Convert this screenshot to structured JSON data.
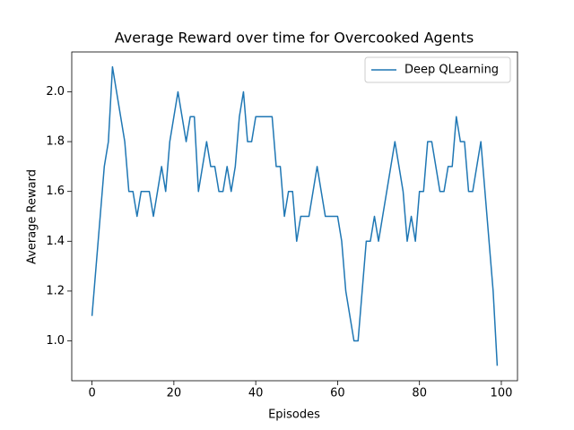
{
  "chart_data": {
    "type": "line",
    "title": "Average Reward over time for Overcooked Agents",
    "xlabel": "Episodes",
    "ylabel": "Average Reward",
    "x": [
      0,
      1,
      2,
      3,
      4,
      5,
      6,
      7,
      8,
      9,
      10,
      11,
      12,
      13,
      14,
      15,
      16,
      17,
      18,
      19,
      20,
      21,
      22,
      23,
      24,
      25,
      26,
      27,
      28,
      29,
      30,
      31,
      32,
      33,
      34,
      35,
      36,
      37,
      38,
      39,
      40,
      41,
      42,
      43,
      44,
      45,
      46,
      47,
      48,
      49,
      50,
      51,
      52,
      53,
      54,
      55,
      56,
      57,
      58,
      59,
      60,
      61,
      62,
      63,
      64,
      65,
      66,
      67,
      68,
      69,
      70,
      71,
      72,
      73,
      74,
      75,
      76,
      77,
      78,
      79,
      80,
      81,
      82,
      83,
      84,
      85,
      86,
      87,
      88,
      89,
      90,
      91,
      92,
      93,
      94,
      95,
      96,
      97,
      98,
      99
    ],
    "series": [
      {
        "name": "Deep QLearning",
        "color": "#1f77b4",
        "values": [
          1.1,
          1.3,
          1.5,
          1.7,
          1.8,
          2.1,
          2.0,
          1.9,
          1.8,
          1.6,
          1.6,
          1.5,
          1.6,
          1.6,
          1.6,
          1.5,
          1.6,
          1.7,
          1.6,
          1.8,
          1.9,
          2.0,
          1.9,
          1.8,
          1.9,
          1.9,
          1.6,
          1.7,
          1.8,
          1.7,
          1.7,
          1.6,
          1.6,
          1.7,
          1.6,
          1.7,
          1.9,
          2.0,
          1.8,
          1.8,
          1.9,
          1.9,
          1.9,
          1.9,
          1.9,
          1.7,
          1.7,
          1.5,
          1.6,
          1.6,
          1.4,
          1.5,
          1.5,
          1.5,
          1.6,
          1.7,
          1.6,
          1.5,
          1.5,
          1.5,
          1.5,
          1.4,
          1.2,
          1.1,
          1.0,
          1.0,
          1.2,
          1.4,
          1.4,
          1.5,
          1.4,
          1.5,
          1.6,
          1.7,
          1.8,
          1.7,
          1.6,
          1.4,
          1.5,
          1.4,
          1.6,
          1.6,
          1.8,
          1.8,
          1.7,
          1.6,
          1.6,
          1.7,
          1.7,
          1.9,
          1.8,
          1.8,
          1.6,
          1.6,
          1.7,
          1.8,
          1.6,
          1.4,
          1.2,
          0.9
        ]
      }
    ],
    "xlim": [
      -4.95,
      103.95
    ],
    "ylim": [
      0.84,
      2.16
    ],
    "xticks": [
      0,
      20,
      40,
      60,
      80,
      100
    ],
    "yticks": [
      {
        "value": 1,
        "label": "1.0"
      },
      1.2,
      1.4,
      1.6,
      1.8,
      {
        "value": 2,
        "label": "2.0"
      }
    ],
    "grid": false,
    "legend": "upper right"
  }
}
